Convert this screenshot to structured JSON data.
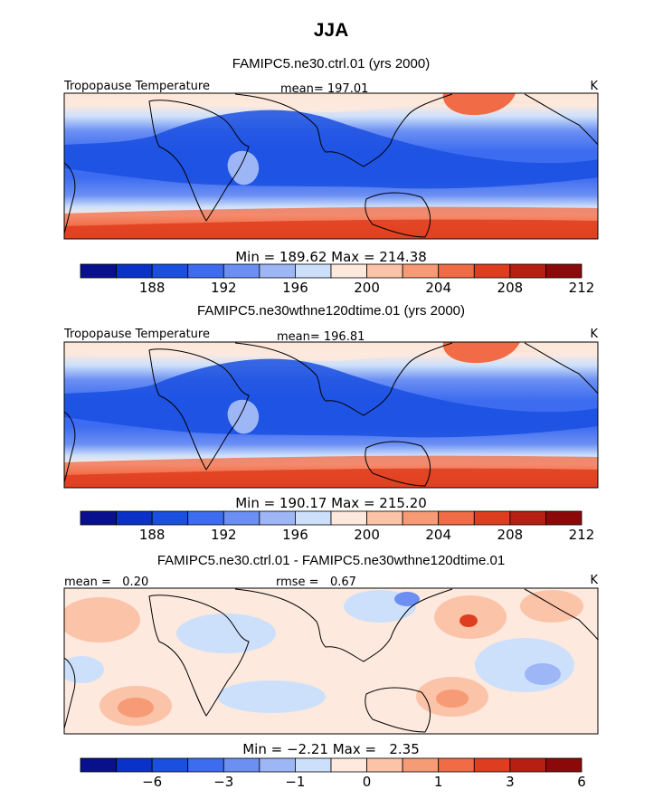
{
  "figure_title": "JJA",
  "chart_data": [
    {
      "type": "heatmap",
      "title": "FAMIPC5.ne30.ctrl.01 (yrs 2000)",
      "left_label": "Tropopause Temperature",
      "center_label": "mean= 197.01",
      "units": "K",
      "stats": "Min = 189.62 Max = 214.38",
      "legend": {
        "colors": [
          "#08108e",
          "#0a31c8",
          "#1a4fe0",
          "#3d6cf0",
          "#6b8ff3",
          "#9db6f6",
          "#cde0fb",
          "#fde9de",
          "#fbc3a8",
          "#f79a76",
          "#f06b46",
          "#df3d1f",
          "#b71f12",
          "#8b0a09"
        ],
        "tick_labels": [
          "188",
          "192",
          "196",
          "200",
          "204",
          "208",
          "212"
        ],
        "tick_bounds": [
          2,
          4,
          6,
          8,
          10,
          12,
          14
        ]
      }
    },
    {
      "type": "heatmap",
      "title": "FAMIPC5.ne30wthne120dtime.01 (yrs 2000)",
      "left_label": "Tropopause Temperature",
      "center_label": "mean= 196.81",
      "units": "K",
      "stats": "Min = 190.17 Max = 215.20",
      "legend": {
        "colors": [
          "#08108e",
          "#0a31c8",
          "#1a4fe0",
          "#3d6cf0",
          "#6b8ff3",
          "#9db6f6",
          "#cde0fb",
          "#fde9de",
          "#fbc3a8",
          "#f79a76",
          "#f06b46",
          "#df3d1f",
          "#b71f12",
          "#8b0a09"
        ],
        "tick_labels": [
          "188",
          "192",
          "196",
          "200",
          "204",
          "208",
          "212"
        ],
        "tick_bounds": [
          2,
          4,
          6,
          8,
          10,
          12,
          14
        ]
      }
    },
    {
      "type": "heatmap",
      "title": "FAMIPC5.ne30.ctrl.01 - FAMIPC5.ne30wthne120dtime.01",
      "left_label": "mean =   0.20",
      "center_label": "rmse =   0.67",
      "units": "K",
      "stats": "Min = −2.21 Max =   2.35",
      "legend": {
        "colors": [
          "#08108e",
          "#0a31c8",
          "#1a4fe0",
          "#3d6cf0",
          "#6b8ff3",
          "#9db6f6",
          "#cde0fb",
          "#fde9de",
          "#fbc3a8",
          "#f79a76",
          "#f06b46",
          "#df3d1f",
          "#b71f12",
          "#8b0a09"
        ],
        "tick_labels": [
          "−6",
          "−3",
          "−1",
          "0",
          "1",
          "3",
          "6"
        ],
        "tick_bounds": [
          2,
          4,
          6,
          8,
          10,
          12,
          14
        ]
      }
    }
  ]
}
